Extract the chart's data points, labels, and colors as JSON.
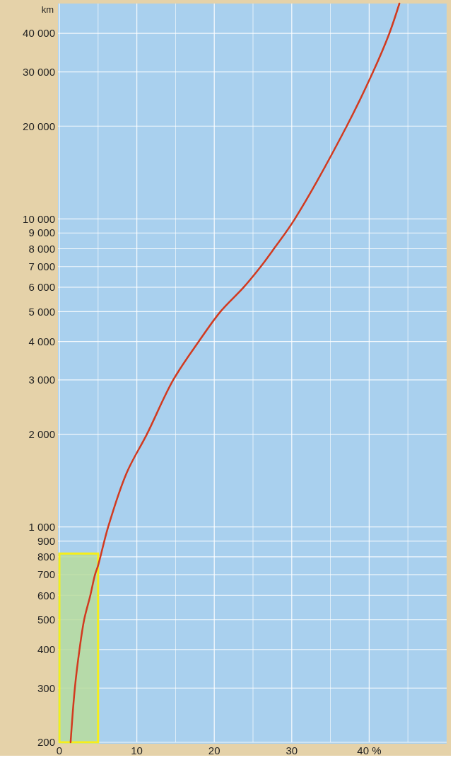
{
  "chart_data": {
    "type": "line",
    "ylabel": "km",
    "log": "y",
    "grid": true,
    "marker": "none",
    "line_style": "solid",
    "xlim": [
      0,
      50
    ],
    "xticks": [
      0,
      {
        "value": 5,
        "label": null
      },
      10,
      {
        "value": 15,
        "label": null
      },
      20,
      {
        "value": 25,
        "label": null
      },
      30,
      {
        "value": 35,
        "label": null
      },
      {
        "value": 40,
        "label": "40 %"
      },
      {
        "value": 45,
        "label": null
      }
    ],
    "ylim": [
      200,
      50000
    ],
    "yticks": [
      200,
      300,
      400,
      500,
      600,
      700,
      800,
      900,
      {
        "value": 1000,
        "label": "1 000"
      },
      {
        "value": 2000,
        "label": "2 000"
      },
      {
        "value": 3000,
        "label": "3 000"
      },
      {
        "value": 4000,
        "label": "4 000"
      },
      {
        "value": 5000,
        "label": "5 000"
      },
      {
        "value": 6000,
        "label": "6 000"
      },
      {
        "value": 7000,
        "label": "7 000"
      },
      {
        "value": 8000,
        "label": "8 000"
      },
      {
        "value": 9000,
        "label": "9 000"
      },
      {
        "value": 10000,
        "label": "10 000"
      },
      {
        "value": 20000,
        "label": "20 000"
      },
      {
        "value": 30000,
        "label": "30 000"
      },
      {
        "value": 40000,
        "label": "40 000"
      }
    ],
    "series": [
      {
        "type": "area",
        "color": "#b9dc9c",
        "x": [
          0,
          5
        ],
        "values": [
          820,
          820
        ]
      },
      {
        "color": "#d23a1f",
        "x": [
          1.45,
          2.0,
          2.6,
          3.2,
          4.0,
          4.6,
          5.0,
          6.3,
          8.7,
          11.3,
          14.7,
          18.0,
          20.8,
          23.8,
          26.0,
          27.7,
          30.4,
          37.1,
          40.5,
          42.6,
          43.9
        ],
        "values": [
          200,
          300,
          400,
          500,
          600,
          700,
          750,
          1000,
          1500,
          2000,
          3000,
          4000,
          5000,
          6000,
          7000,
          8000,
          10000,
          20000,
          30000,
          40000,
          50000
        ]
      }
    ]
  }
}
